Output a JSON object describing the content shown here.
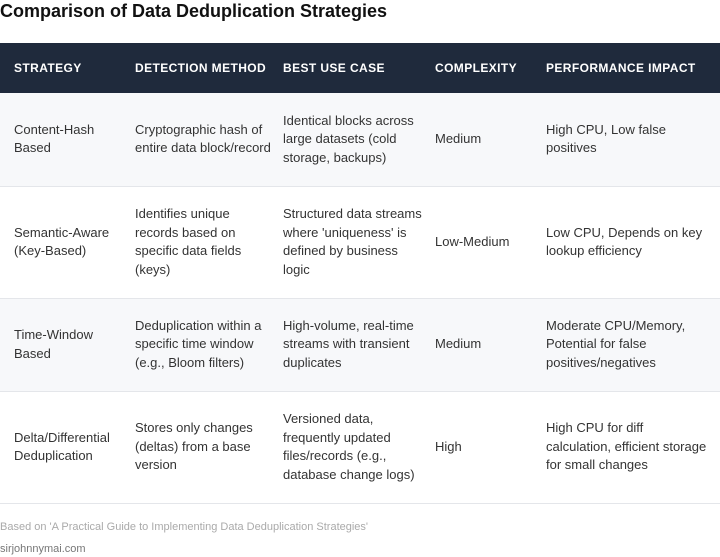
{
  "title": "Comparison of Data Deduplication Strategies",
  "table": {
    "headers": [
      "STRATEGY",
      "DETECTION METHOD",
      "BEST USE CASE",
      "COMPLEXITY",
      "PERFORMANCE IMPACT"
    ],
    "rows": [
      [
        "Content-Hash Based",
        "Cryptographic hash of entire data block/record",
        "Identical blocks across large datasets (cold storage, backups)",
        "Medium",
        "High CPU, Low false positives"
      ],
      [
        "Semantic-Aware (Key-Based)",
        "Identifies unique records based on specific data fields (keys)",
        "Structured data streams where 'uniqueness' is defined by business logic",
        "Low-Medium",
        "Low CPU, Depends on key lookup efficiency"
      ],
      [
        "Time-Window Based",
        "Deduplication within a specific time window (e.g., Bloom filters)",
        "High-volume, real-time streams with transient duplicates",
        "Medium",
        "Moderate CPU/Memory, Potential for false positives/negatives"
      ],
      [
        "Delta/Differential Deduplication",
        "Stores only changes (deltas) from a base version",
        "Versioned data, frequently updated files/records (e.g., database change logs)",
        "High",
        "High CPU for diff calculation, efficient storage for small changes"
      ]
    ]
  },
  "footer": {
    "source": "Based on 'A Practical Guide to Implementing Data Deduplication Strategies'",
    "site": "sirjohnnymai.com"
  },
  "colors": {
    "header_bg": "#1f2a3c",
    "header_text": "#ffffff",
    "row_alt_bg": "#f7f8fa"
  }
}
